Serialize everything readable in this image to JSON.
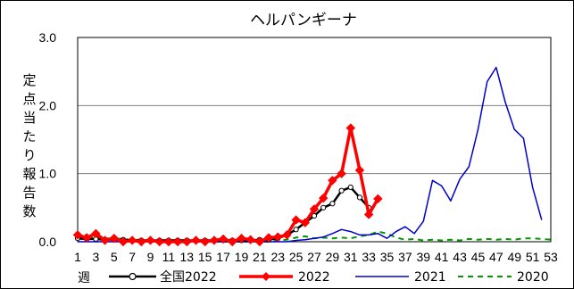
{
  "chart_data": {
    "type": "line",
    "title": "ヘルパンギーナ",
    "ylabel": "定点当たり報告数",
    "xlabel": "週",
    "ylim": [
      0,
      3
    ],
    "yticks": [
      "0.0",
      "1.0",
      "2.0",
      "3.0"
    ],
    "xlim": [
      1,
      53
    ],
    "xticks": [
      1,
      3,
      5,
      7,
      9,
      11,
      13,
      15,
      17,
      19,
      21,
      23,
      25,
      27,
      29,
      31,
      33,
      35,
      37,
      39,
      41,
      43,
      45,
      47,
      49,
      51,
      53
    ],
    "grid": "horizontal",
    "legend_position": "bottom",
    "series": [
      {
        "name": "全国2022",
        "color": "#000000",
        "style": "solid-open-circles",
        "x": [
          1,
          2,
          3,
          4,
          5,
          6,
          7,
          8,
          9,
          10,
          11,
          12,
          13,
          14,
          15,
          16,
          17,
          18,
          19,
          20,
          21,
          22,
          23,
          24,
          25,
          26,
          27,
          28,
          29,
          30,
          31,
          32,
          33
        ],
        "y": [
          0.05,
          0.04,
          0.04,
          0.03,
          0.03,
          0.03,
          0.02,
          0.02,
          0.02,
          0.02,
          0.02,
          0.02,
          0.02,
          0.02,
          0.02,
          0.02,
          0.02,
          0.02,
          0.02,
          0.02,
          0.03,
          0.03,
          0.05,
          0.1,
          0.18,
          0.28,
          0.38,
          0.5,
          0.56,
          0.75,
          0.8,
          0.65,
          0.5
        ]
      },
      {
        "name": "2022",
        "color": "#ff0000",
        "style": "thick-diamonds",
        "x": [
          1,
          2,
          3,
          4,
          5,
          6,
          7,
          8,
          9,
          10,
          11,
          12,
          13,
          14,
          15,
          16,
          17,
          18,
          19,
          20,
          21,
          22,
          23,
          24,
          25,
          26,
          27,
          28,
          29,
          30,
          31,
          32,
          33,
          34
        ],
        "y": [
          0.1,
          0.06,
          0.12,
          0.02,
          0.05,
          0.0,
          0.02,
          0.0,
          0.02,
          0.0,
          0.0,
          0.0,
          0.0,
          0.02,
          0.0,
          0.02,
          0.04,
          0.0,
          0.05,
          0.03,
          0.0,
          0.06,
          0.07,
          0.1,
          0.32,
          0.28,
          0.48,
          0.64,
          0.9,
          1.0,
          1.67,
          1.05,
          0.4,
          0.63
        ]
      },
      {
        "name": "2021",
        "color": "#0000cc",
        "style": "solid",
        "x": [
          1,
          2,
          3,
          4,
          5,
          6,
          7,
          8,
          9,
          10,
          11,
          12,
          13,
          14,
          15,
          16,
          17,
          18,
          19,
          20,
          21,
          22,
          23,
          24,
          25,
          26,
          27,
          28,
          29,
          30,
          31,
          32,
          33,
          34,
          35,
          36,
          37,
          38,
          39,
          40,
          41,
          42,
          43,
          44,
          45,
          46,
          47,
          48,
          49,
          50,
          51,
          52
        ],
        "y": [
          0.0,
          0.0,
          0.0,
          0.0,
          0.0,
          0.0,
          0.0,
          0.0,
          0.0,
          0.0,
          0.0,
          0.0,
          0.0,
          0.0,
          0.0,
          0.0,
          0.0,
          0.0,
          0.0,
          0.0,
          0.0,
          0.0,
          0.0,
          0.0,
          0.02,
          0.03,
          0.05,
          0.07,
          0.12,
          0.18,
          0.15,
          0.1,
          0.1,
          0.12,
          0.05,
          0.15,
          0.22,
          0.12,
          0.3,
          0.9,
          0.82,
          0.6,
          0.92,
          1.1,
          1.65,
          2.35,
          2.56,
          2.05,
          1.65,
          1.52,
          0.8,
          0.32
        ]
      },
      {
        "name": "2020",
        "color": "#009900",
        "style": "dashed",
        "x": [
          1,
          2,
          3,
          4,
          5,
          6,
          7,
          8,
          9,
          10,
          11,
          12,
          13,
          14,
          15,
          16,
          17,
          18,
          19,
          20,
          21,
          22,
          23,
          24,
          25,
          26,
          27,
          28,
          29,
          30,
          31,
          32,
          33,
          34,
          35,
          36,
          37,
          38,
          39,
          40,
          41,
          42,
          43,
          44,
          45,
          46,
          47,
          48,
          49,
          50,
          51,
          52,
          53
        ],
        "y": [
          0.08,
          0.06,
          0.07,
          0.05,
          0.05,
          0.04,
          0.03,
          0.03,
          0.02,
          0.02,
          0.01,
          0.01,
          0.01,
          0.0,
          0.0,
          0.0,
          0.0,
          0.0,
          0.0,
          0.0,
          0.0,
          0.0,
          0.02,
          0.03,
          0.06,
          0.08,
          0.05,
          0.06,
          0.05,
          0.06,
          0.05,
          0.08,
          0.1,
          0.15,
          0.12,
          0.06,
          0.03,
          0.04,
          0.02,
          0.03,
          0.02,
          0.03,
          0.02,
          0.04,
          0.03,
          0.04,
          0.03,
          0.04,
          0.03,
          0.05,
          0.05,
          0.04,
          0.03
        ]
      }
    ]
  }
}
